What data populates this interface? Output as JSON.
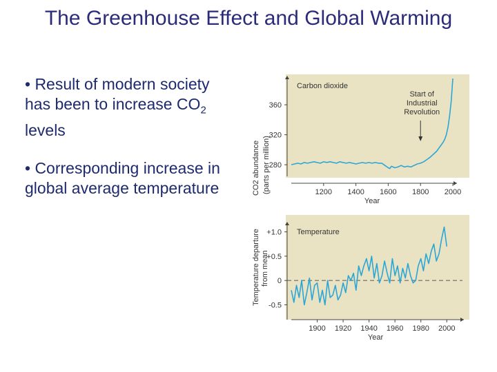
{
  "slide": {
    "title": "The Greenhouse Effect and Global Warming",
    "bullets": [
      {
        "text_before": "• Result of modern society has been to increase CO",
        "subscript": "2",
        "text_after": " levels"
      },
      {
        "text_before": "• Corresponding increase in global average temperature",
        "subscript": "",
        "text_after": ""
      }
    ]
  },
  "colors": {
    "title": "#2b2b7a",
    "bullet_text": "#1e2a6e",
    "panel_background": "#eae3c3",
    "series_line": "#2aa6d6"
  },
  "chart_data": [
    {
      "type": "line",
      "title": "Carbon dioxide",
      "ylabel": "CO2 abundance",
      "ylabel_sub": "(parts per million)",
      "xlabel": "Year",
      "xlim": [
        1000,
        2000
      ],
      "ylim": [
        270,
        395
      ],
      "xticks": [
        1200,
        1400,
        1600,
        1800,
        2000
      ],
      "yticks": [
        280,
        320,
        360
      ],
      "grid": false,
      "annotation": {
        "lines": [
          "Start of",
          "Industrial",
          "Revolution"
        ],
        "x": 1800
      },
      "series": [
        {
          "x": [
            1000,
            1020,
            1040,
            1060,
            1080,
            1100,
            1120,
            1140,
            1160,
            1180,
            1200,
            1220,
            1240,
            1260,
            1280,
            1300,
            1320,
            1340,
            1360,
            1380,
            1400,
            1420,
            1440,
            1460,
            1480,
            1500,
            1520,
            1540,
            1560,
            1580,
            1600,
            1610,
            1620,
            1640,
            1660,
            1680,
            1700,
            1720,
            1740,
            1760,
            1780,
            1800,
            1820,
            1840,
            1860,
            1880,
            1900,
            1920,
            1940,
            1950,
            1960,
            1970,
            1980,
            1990,
            2000
          ],
          "values": [
            280,
            281,
            282,
            281,
            283,
            282,
            283,
            284,
            283,
            282,
            284,
            283,
            284,
            283,
            282,
            284,
            283,
            282,
            283,
            282,
            281,
            282,
            283,
            282,
            283,
            282,
            283,
            282,
            282,
            279,
            276,
            275,
            278,
            276,
            277,
            279,
            277,
            278,
            277,
            279,
            281,
            282,
            284,
            287,
            290,
            294,
            298,
            304,
            310,
            314,
            320,
            330,
            345,
            365,
            395
          ]
        }
      ]
    },
    {
      "type": "line",
      "title": "Temperature",
      "ylabel": "Temperature departure",
      "ylabel_sub": "from mean",
      "xlabel": "Year",
      "xlim": [
        1880,
        2010
      ],
      "ylim": [
        -0.72,
        1.15
      ],
      "xticks": [
        1900,
        1920,
        1940,
        1960,
        1980,
        2000
      ],
      "yticks": [
        -0.5,
        0,
        0.5,
        1.0
      ],
      "ytick_labels": [
        "-0.5",
        "0",
        "+0.5",
        "+1.0"
      ],
      "reference_line": 0,
      "grid": false,
      "series": [
        {
          "x": [
            1880,
            1882,
            1884,
            1886,
            1888,
            1890,
            1892,
            1894,
            1896,
            1898,
            1900,
            1902,
            1904,
            1906,
            1908,
            1910,
            1912,
            1914,
            1916,
            1918,
            1920,
            1922,
            1924,
            1926,
            1928,
            1930,
            1932,
            1934,
            1936,
            1938,
            1940,
            1942,
            1944,
            1946,
            1948,
            1950,
            1952,
            1954,
            1956,
            1958,
            1960,
            1962,
            1964,
            1966,
            1968,
            1970,
            1972,
            1974,
            1976,
            1978,
            1980,
            1982,
            1984,
            1986,
            1988,
            1990,
            1992,
            1994,
            1996,
            1998,
            2000
          ],
          "values": [
            -0.2,
            -0.45,
            -0.1,
            -0.35,
            0.0,
            -0.5,
            -0.25,
            0.05,
            -0.4,
            -0.1,
            -0.05,
            -0.45,
            -0.2,
            -0.5,
            0.0,
            -0.35,
            -0.3,
            -0.1,
            -0.4,
            -0.3,
            -0.05,
            -0.25,
            0.1,
            0.0,
            0.15,
            -0.2,
            0.3,
            0.1,
            0.3,
            0.45,
            0.2,
            0.5,
            0.05,
            0.35,
            -0.05,
            0.1,
            0.4,
            0.15,
            -0.05,
            0.45,
            0.1,
            0.3,
            -0.05,
            0.25,
            0.05,
            0.35,
            0.1,
            -0.05,
            0.0,
            0.3,
            0.45,
            0.2,
            0.55,
            0.35,
            0.6,
            0.75,
            0.4,
            0.55,
            0.85,
            1.1,
            0.7
          ]
        }
      ]
    }
  ]
}
